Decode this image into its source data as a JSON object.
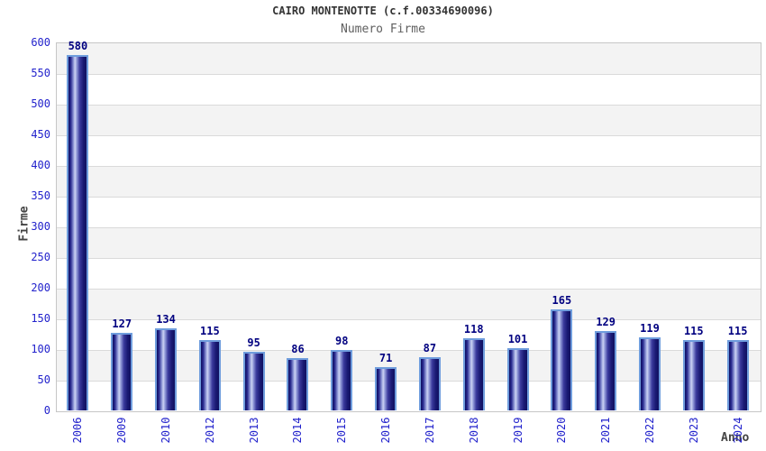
{
  "chart_data": {
    "type": "bar",
    "title": "CAIRO MONTENOTTE (c.f.00334690096)",
    "subtitle": "Numero Firme",
    "xlabel": "Anno",
    "ylabel": "Firme",
    "categories": [
      "2006",
      "2009",
      "2010",
      "2012",
      "2013",
      "2014",
      "2015",
      "2016",
      "2017",
      "2018",
      "2019",
      "2020",
      "2021",
      "2022",
      "2023",
      "2024"
    ],
    "values": [
      580,
      127,
      134,
      115,
      95,
      86,
      98,
      71,
      87,
      118,
      101,
      165,
      129,
      119,
      115,
      115
    ],
    "ylim": [
      0,
      600
    ],
    "ytick_step": 50,
    "grid": true,
    "legend": "none",
    "value_labels": true
  },
  "colors": {
    "tick_label": "#2222cc",
    "value_label": "#000080",
    "title": "#333333",
    "subtitle": "#5f5f5f",
    "axis_title": "#444444",
    "band_alt": "#f3f3f3",
    "band_main": "#ffffff",
    "gridline": "#dadada",
    "plot_border": "#c6c6c6",
    "bar_edge_dark": "#101060",
    "bar_mid": "#9099d8",
    "bar_highlight": "#ccd3f3",
    "bar_border": "#6f9ddd",
    "background": "#ffffff"
  }
}
